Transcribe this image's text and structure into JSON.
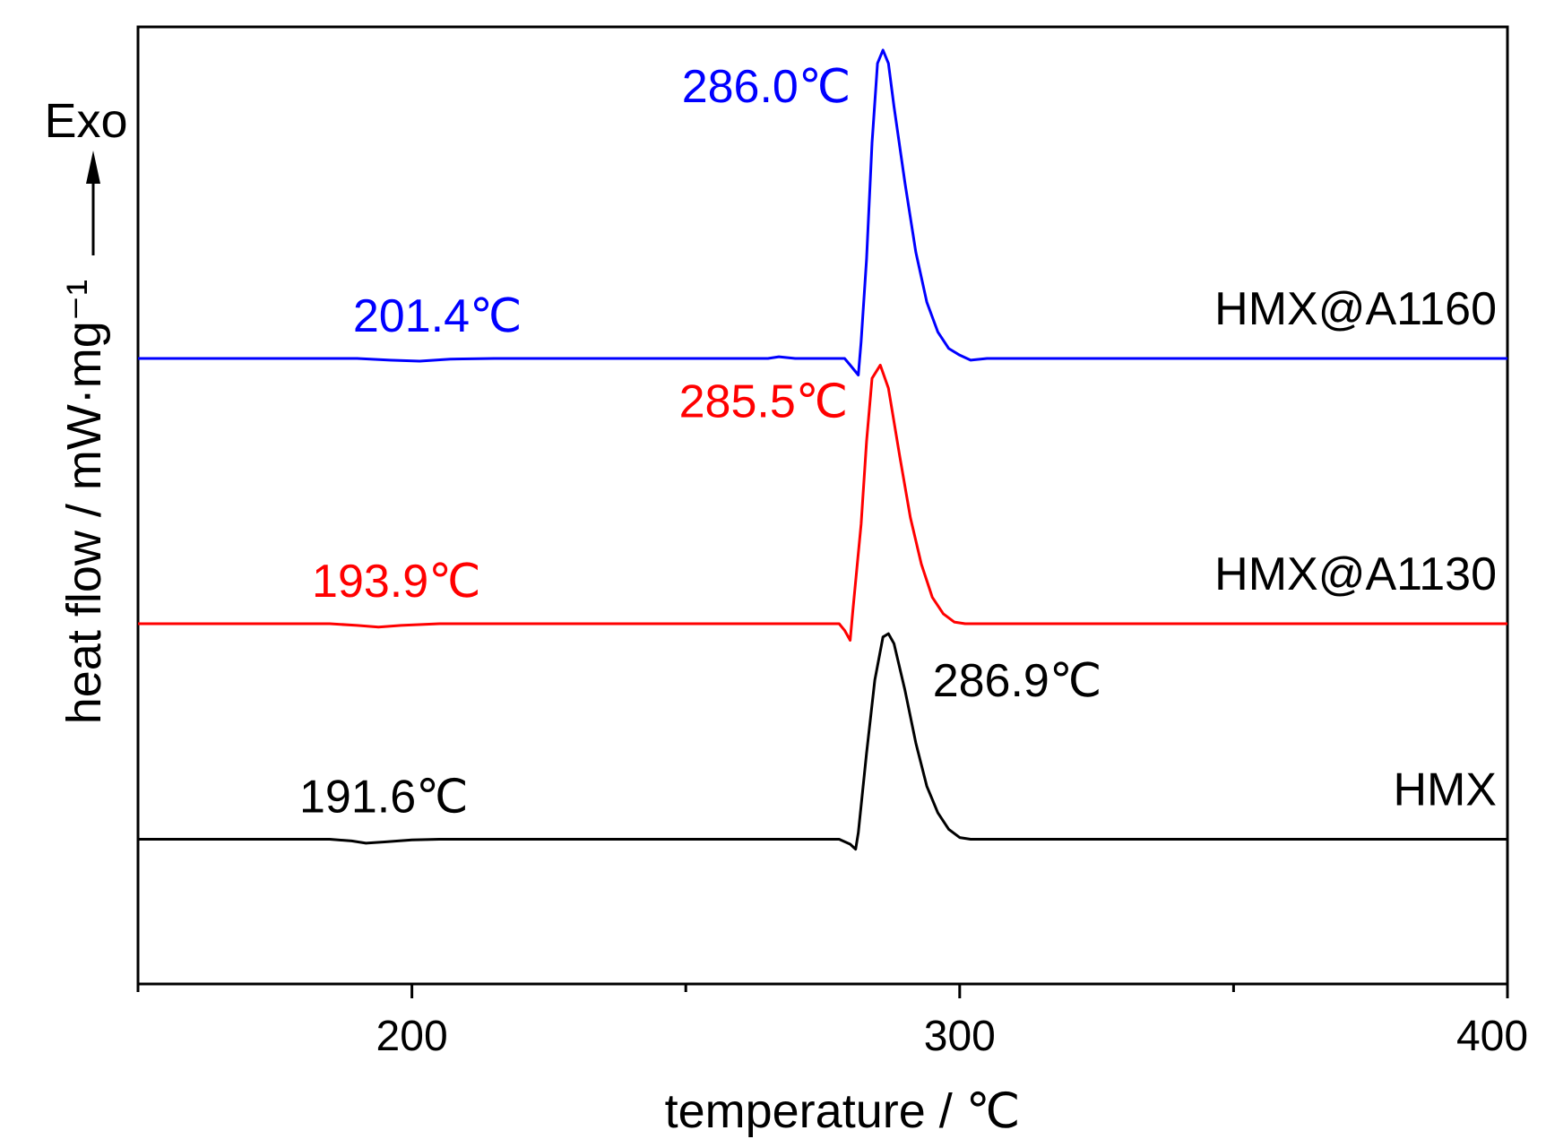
{
  "chart_data": {
    "type": "line",
    "xlabel": "temperature / ℃",
    "ylabel": "heat flow / mW·mg⁻¹",
    "y_direction_label": "Exo",
    "xlim": [
      150,
      400
    ],
    "x_ticks": [
      200,
      300,
      400
    ],
    "x_minor_ticks": [
      150,
      250,
      350
    ],
    "y_ticks_shown": false,
    "grid": false,
    "series": [
      {
        "name": "HMX@A1160",
        "color": "#0000ff",
        "offset": 10,
        "points": [
          [
            150,
            0
          ],
          [
            190,
            0
          ],
          [
            196,
            -0.05
          ],
          [
            201.4,
            -0.08
          ],
          [
            207,
            -0.02
          ],
          [
            215,
            0
          ],
          [
            265,
            0
          ],
          [
            267,
            0.05
          ],
          [
            270,
            0
          ],
          [
            279,
            0
          ],
          [
            280,
            -0.2
          ],
          [
            281.5,
            -0.5
          ],
          [
            282,
            0.5
          ],
          [
            283,
            3
          ],
          [
            284,
            6.5
          ],
          [
            285,
            8.9
          ],
          [
            286,
            9.3
          ],
          [
            287,
            8.9
          ],
          [
            288,
            7.6
          ],
          [
            290,
            5.3
          ],
          [
            292,
            3.2
          ],
          [
            294,
            1.7
          ],
          [
            296,
            0.8
          ],
          [
            298,
            0.3
          ],
          [
            300,
            0.1
          ],
          [
            302,
            -0.05
          ],
          [
            305,
            0
          ],
          [
            400,
            0
          ]
        ],
        "annotations": [
          {
            "label": "201.4℃",
            "x": 201.4
          },
          {
            "label": "286.0℃",
            "x": 286.0
          }
        ]
      },
      {
        "name": "HMX@A1130",
        "color": "#ff0000",
        "offset": 2,
        "points": [
          [
            150,
            0
          ],
          [
            185,
            0
          ],
          [
            190,
            -0.05
          ],
          [
            193.9,
            -0.1
          ],
          [
            198,
            -0.05
          ],
          [
            205,
            0
          ],
          [
            278,
            0
          ],
          [
            279,
            -0.2
          ],
          [
            280,
            -0.5
          ],
          [
            280.5,
            0.4
          ],
          [
            282,
            3
          ],
          [
            283,
            5.5
          ],
          [
            284,
            7.4
          ],
          [
            285.5,
            7.8
          ],
          [
            287,
            7.1
          ],
          [
            289,
            5.1
          ],
          [
            291,
            3.2
          ],
          [
            293,
            1.8
          ],
          [
            295,
            0.8
          ],
          [
            297,
            0.3
          ],
          [
            299,
            0.05
          ],
          [
            301,
            0
          ],
          [
            400,
            0
          ]
        ],
        "annotations": [
          {
            "label": "193.9℃",
            "x": 193.9
          },
          {
            "label": "285.5℃",
            "x": 285.5
          }
        ]
      },
      {
        "name": "HMX",
        "color": "#000000",
        "offset": -4.5,
        "points": [
          [
            150,
            0
          ],
          [
            185,
            0
          ],
          [
            189,
            -0.05
          ],
          [
            191.6,
            -0.12
          ],
          [
            195,
            -0.08
          ],
          [
            200,
            -0.02
          ],
          [
            205,
            0
          ],
          [
            278,
            0
          ],
          [
            280,
            -0.15
          ],
          [
            281,
            -0.3
          ],
          [
            281.5,
            0.2
          ],
          [
            283,
            2.6
          ],
          [
            284.5,
            4.8
          ],
          [
            286,
            6.1
          ],
          [
            287,
            6.2
          ],
          [
            288,
            5.9
          ],
          [
            290,
            4.5
          ],
          [
            292,
            2.9
          ],
          [
            294,
            1.6
          ],
          [
            296,
            0.8
          ],
          [
            298,
            0.3
          ],
          [
            300,
            0.05
          ],
          [
            302,
            0
          ],
          [
            400,
            0
          ]
        ],
        "annotations": [
          {
            "label": "191.6℃",
            "x": 191.6
          },
          {
            "label": "286.9℃",
            "x": 286.9
          }
        ]
      }
    ]
  }
}
